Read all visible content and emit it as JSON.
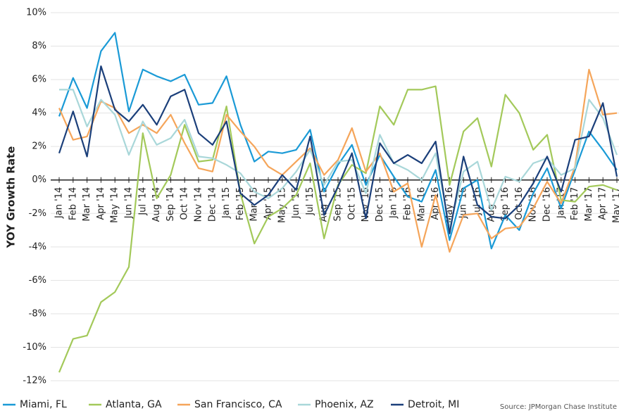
{
  "chart_data": {
    "type": "line",
    "y_label": "YOY Growth Rate",
    "source": "Source:  JPMorgan Chase Institute",
    "categories": [
      "Jan '14",
      "Feb '14",
      "Mar '14",
      "Apr '14",
      "May '14",
      "Jun '14",
      "Jul '14",
      "Aug '14",
      "Sep '14",
      "Oct '14",
      "Nov '14",
      "Dec '14",
      "Jan '15",
      "Feb '15",
      "Mar '15",
      "Apr '15",
      "May '15",
      "Jun '15",
      "Jul '15",
      "Aug '15",
      "Sep '15",
      "Oct '15",
      "Nov '15",
      "Dec '15",
      "Jan '16",
      "Feb '16",
      "Mar '16",
      "Apr '16",
      "May '16",
      "Jun '16",
      "Jul '16",
      "Aug '16",
      "Sep '16",
      "Oct '16",
      "Nov '16",
      "Dec '16",
      "Jan '17",
      "Feb '17",
      "Mar '17",
      "Apr '17",
      "May '17"
    ],
    "series": [
      {
        "name": "Miami, FL",
        "color": "#1a9ad6",
        "values": [
          3.8,
          6.1,
          4.3,
          7.7,
          8.8,
          4.1,
          6.6,
          6.2,
          5.9,
          6.3,
          4.5,
          4.6,
          6.2,
          3.3,
          1.1,
          1.7,
          1.6,
          1.8,
          3.0,
          -0.7,
          0.9,
          2.1,
          -0.3,
          1.5,
          0.2,
          -1.0,
          -1.3,
          0.6,
          -3.6,
          -0.5,
          0.0,
          -4.1,
          -2.1,
          -3.0,
          -0.8,
          0.7,
          -1.7,
          0.6,
          2.9,
          1.8,
          0.6
        ]
      },
      {
        "name": "Atlanta, GA",
        "color": "#a3c95a",
        "values": [
          -11.5,
          -9.5,
          -9.3,
          -7.3,
          -6.7,
          -5.2,
          2.8,
          -1.1,
          0.3,
          3.3,
          1.1,
          1.2,
          4.4,
          -0.8,
          -3.8,
          -2.2,
          -1.7,
          -0.9,
          1.0,
          -3.5,
          -0.3,
          0.9,
          0.4,
          4.4,
          3.3,
          5.4,
          5.4,
          5.6,
          -0.3,
          2.9,
          3.7,
          0.8,
          5.1,
          4.0,
          1.8,
          2.7,
          -1.2,
          -1.3,
          -0.4,
          -0.3,
          -0.6
        ]
      },
      {
        "name": "San Francisco, CA",
        "color": "#f5a55a",
        "values": [
          4.3,
          2.4,
          2.6,
          4.7,
          4.3,
          2.8,
          3.3,
          2.8,
          3.9,
          2.2,
          0.7,
          0.5,
          3.9,
          2.9,
          2.0,
          0.8,
          0.3,
          1.1,
          1.9,
          0.3,
          1.2,
          3.1,
          0.5,
          1.6,
          -0.7,
          -0.2,
          -4.0,
          -0.9,
          -4.3,
          -2.1,
          -2.0,
          -3.5,
          -2.9,
          -2.8,
          -1.7,
          -0.1,
          -1.4,
          0.8,
          6.6,
          3.9,
          4.0
        ]
      },
      {
        "name": "Phoenix, AZ",
        "color": "#a9d7d9",
        "values": [
          5.4,
          5.4,
          3.2,
          4.8,
          3.9,
          1.5,
          3.5,
          2.1,
          2.5,
          3.6,
          1.4,
          1.3,
          0.9,
          0.4,
          -0.7,
          -1.1,
          -0.5,
          0.5,
          1.8,
          -0.3,
          1.1,
          1.2,
          -0.8,
          2.7,
          1.0,
          0.6,
          0.0,
          1.6,
          -2.9,
          0.5,
          1.1,
          -1.8,
          0.2,
          -0.1,
          1.0,
          1.3,
          0.3,
          0.7,
          4.8,
          3.7,
          1.5
        ]
      },
      {
        "name": "Detroit, MI",
        "color": "#1b3f7a",
        "values": [
          1.6,
          4.1,
          1.4,
          6.8,
          4.2,
          3.5,
          4.5,
          3.3,
          5.0,
          5.4,
          2.8,
          2.1,
          3.5,
          -0.8,
          -1.5,
          -0.9,
          0.3,
          -0.6,
          2.6,
          -2.1,
          -0.4,
          1.6,
          -2.3,
          2.2,
          1.0,
          1.5,
          1.0,
          2.3,
          -3.2,
          1.4,
          -1.5,
          -2.2,
          -2.3,
          -1.5,
          -0.2,
          1.4,
          -0.7,
          2.4,
          2.6,
          4.6,
          0.2
        ]
      }
    ],
    "ylim": [
      -12,
      10
    ],
    "yticks": [
      {
        "value": -12,
        "label": "-12%"
      },
      {
        "value": -10,
        "label": "-10%"
      },
      {
        "value": -8,
        "label": "-8%"
      },
      {
        "value": -6,
        "label": "-6%"
      },
      {
        "value": -4,
        "label": "-4%"
      },
      {
        "value": -2,
        "label": "-2%"
      },
      {
        "value": 0,
        "label": "0%"
      },
      {
        "value": 2,
        "label": "2%"
      },
      {
        "value": 4,
        "label": "4%"
      },
      {
        "value": 6,
        "label": "6%"
      },
      {
        "value": 8,
        "label": "8%"
      },
      {
        "value": 10,
        "label": "10%"
      }
    ],
    "grid": true,
    "legend": "bottom"
  }
}
